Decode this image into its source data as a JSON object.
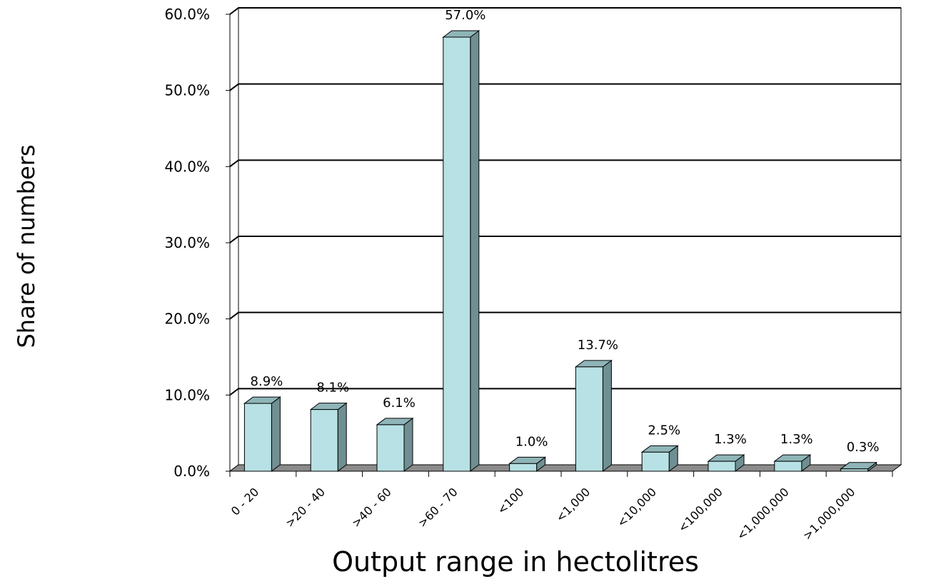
{
  "chart_data": {
    "type": "bar",
    "categories": [
      "0 - 20",
      ">20 - 40",
      ">40 - 60",
      ">60 - 70",
      "<100",
      "<1,000",
      "<10,000",
      "<100,000",
      "<1,000,000",
      ">1,000,000"
    ],
    "values": [
      8.9,
      8.1,
      6.1,
      57.0,
      1.0,
      13.7,
      2.5,
      1.3,
      1.3,
      0.3
    ],
    "data_labels": [
      "8.9%",
      "8.1%",
      "6.1%",
      "57.0%",
      "1.0%",
      "13.7%",
      "2.5%",
      "1.3%",
      "1.3%",
      "0.3%"
    ],
    "y_ticks": [
      "0.0%",
      "10.0%",
      "20.0%",
      "30.0%",
      "40.0%",
      "50.0%",
      "60.0%"
    ],
    "ylim": [
      0,
      60
    ],
    "xlabel": "Output range in hectolitres",
    "ylabel": "Share of numbers",
    "grid": true,
    "style": "3d-column",
    "colors": {
      "bar_front": "#b7e1e4",
      "bar_top": "#8fb5b8",
      "bar_side": "#6f8f92",
      "floor": "#8c8c8c",
      "gridline": "#000000"
    }
  }
}
